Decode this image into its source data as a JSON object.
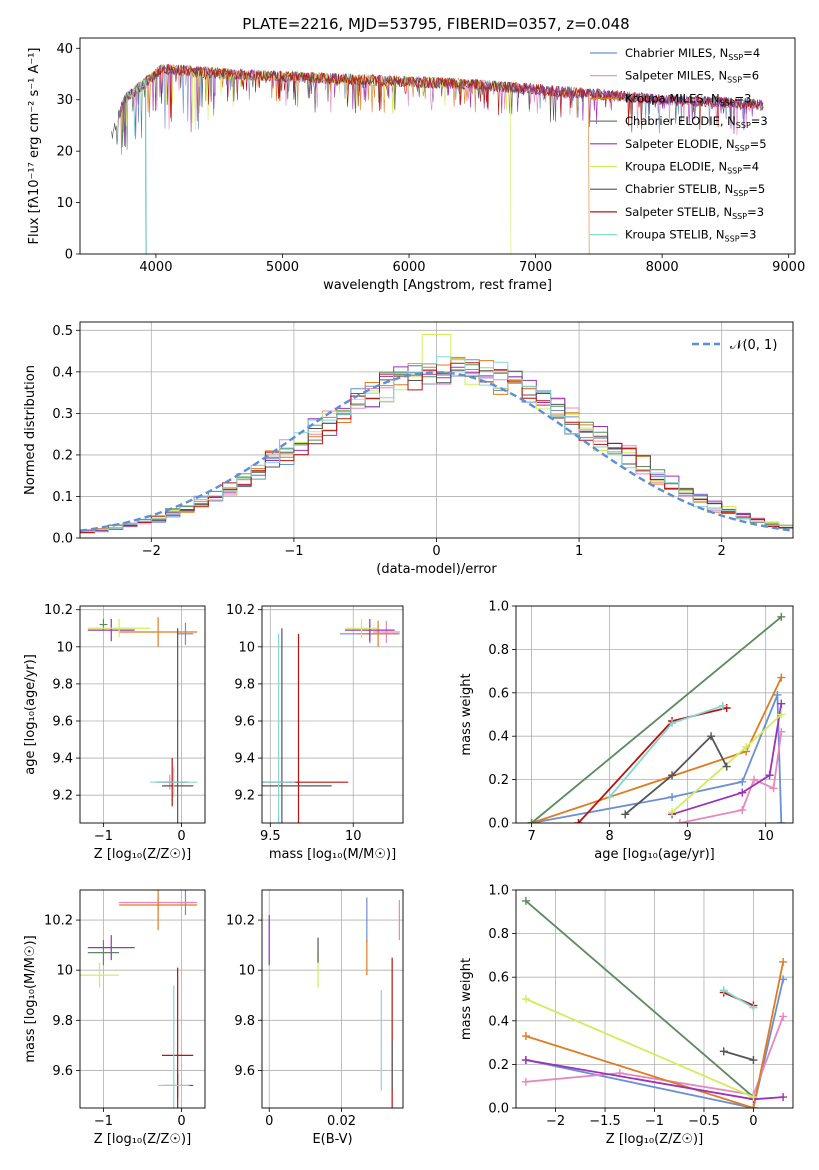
{
  "title": "PLATE=2216, MJD=53795, FIBERID=0357, z=0.048",
  "series": [
    {
      "key": "s1",
      "name": "Chabrier MILES",
      "nssp": "4",
      "color": "#6b8fd6"
    },
    {
      "key": "s2",
      "name": "Salpeter MILES",
      "nssp": "6",
      "color": "#e887be"
    },
    {
      "key": "s3",
      "name": "Kroupa MILES",
      "nssp": "3",
      "color": "#e07b22"
    },
    {
      "key": "s4",
      "name": "Chabrier ELODIE",
      "nssp": "3",
      "color": "#5c8a5c"
    },
    {
      "key": "s5",
      "name": "Salpeter ELODIE",
      "nssp": "5",
      "color": "#9b32b8"
    },
    {
      "key": "s6",
      "name": "Kroupa ELODIE",
      "nssp": "4",
      "color": "#d2ec5a"
    },
    {
      "key": "s7",
      "name": "Chabrier STELIB",
      "nssp": "5",
      "color": "#555555"
    },
    {
      "key": "s8",
      "name": "Salpeter STELIB",
      "nssp": "3",
      "color": "#b8140e"
    },
    {
      "key": "s9",
      "name": "Kroupa STELIB",
      "nssp": "3",
      "color": "#86d6d2"
    }
  ],
  "chart_data": [
    {
      "id": "spectrum",
      "type": "line",
      "xlabel": "wavelength [Angstrom, rest frame]",
      "ylabel": "Flux [fλ10⁻¹⁷ erg cm⁻² s⁻¹ A⁻¹]",
      "xlim": [
        3400,
        9050
      ],
      "ylim": [
        0,
        42
      ],
      "xticks": [
        4000,
        5000,
        6000,
        7000,
        8000,
        9000
      ],
      "yticks": [
        0,
        10,
        20,
        30,
        40
      ],
      "legend": "top-right",
      "continuum": {
        "x": [
          3650,
          3750,
          3850,
          3950,
          4050,
          4300,
          4600,
          5000,
          5500,
          6000,
          6500,
          7000,
          7500,
          8000,
          8500,
          8800
        ],
        "y": [
          23,
          30,
          32,
          34,
          36,
          35.5,
          35,
          34.5,
          34,
          33.5,
          33,
          32,
          31,
          30,
          29.5,
          29
        ]
      },
      "dropouts": [
        {
          "series": "s9",
          "x": 3920
        },
        {
          "series": "s4",
          "x": 3920
        },
        {
          "series": "s6",
          "x": 6800
        },
        {
          "series": "s3",
          "x": 7420
        }
      ]
    },
    {
      "id": "residuals",
      "type": "line",
      "xlabel": "(data-model)/error",
      "ylabel": "Normed distribution",
      "xlim": [
        -2.5,
        2.5
      ],
      "ylim": [
        0,
        0.52
      ],
      "xticks": [
        -2,
        -1,
        0,
        1,
        2
      ],
      "yticks": [
        0.0,
        0.1,
        0.2,
        0.3,
        0.4,
        0.5
      ],
      "legend": "top-right",
      "legend_label": "𝒩(0, 1)",
      "reference_curve": {
        "type": "normal",
        "mean": 0,
        "sigma": 1,
        "color": "#5b8fd6"
      },
      "bin_width": 0.1
    },
    {
      "id": "age_vs_Z",
      "type": "scatter",
      "xlabel": "Z [log₁₀(Z/Z☉)]",
      "ylabel": "age  [log₁₀(age/yr)]",
      "xlim": [
        -1.3,
        0.3
      ],
      "ylim": [
        9.05,
        10.22
      ],
      "xticks": [
        -1,
        0
      ],
      "yticks": [
        9.2,
        9.4,
        9.6,
        9.8,
        10.0,
        10.2
      ],
      "points": [
        {
          "series": "s1",
          "x": 0.05,
          "y": 10.07,
          "xerr": 0.1,
          "yerr": 0.06
        },
        {
          "series": "s2",
          "x": -0.15,
          "y": 9.27,
          "xerr": 0.05,
          "yerr": 0.04
        },
        {
          "series": "s3",
          "x": -0.3,
          "y": 10.08,
          "xerr": 0.5,
          "yerr": 0.08
        },
        {
          "series": "s4",
          "x": -1.0,
          "y": 10.12,
          "xerr": 0.05,
          "yerr": 0.03
        },
        {
          "series": "s5",
          "x": -0.9,
          "y": 10.09,
          "xerr": 0.3,
          "yerr": 0.06
        },
        {
          "series": "s6",
          "x": -0.8,
          "y": 10.1,
          "xerr": 0.4,
          "yerr": 0.05
        },
        {
          "series": "s7",
          "x": -0.05,
          "y": 9.25,
          "xerr": 0.2,
          "yerr": 0.85
        },
        {
          "series": "s8",
          "x": -0.12,
          "y": 9.27,
          "xerr": 0.2,
          "yerr": 0.13
        },
        {
          "series": "s9",
          "x": -0.1,
          "y": 9.27,
          "xerr": 0.3,
          "yerr": 0.08
        }
      ]
    },
    {
      "id": "age_vs_mass",
      "type": "scatter",
      "xlabel": "mass [log₁₀(M/M☉)]",
      "ylabel": "",
      "xlim": [
        9.45,
        10.3
      ],
      "ylim": [
        9.05,
        10.22
      ],
      "xticks": [
        9.5,
        10.0
      ],
      "yticks": [
        9.2,
        9.4,
        9.6,
        9.8,
        10.0,
        10.2
      ],
      "points": [
        {
          "series": "s1",
          "x": 10.1,
          "y": 10.07,
          "xerr": 0.18,
          "yerr": 0.05
        },
        {
          "series": "s2",
          "x": 10.2,
          "y": 10.08,
          "xerr": 0.08,
          "yerr": 0.06
        },
        {
          "series": "s3",
          "x": 10.15,
          "y": 10.07,
          "xerr": 0.12,
          "yerr": 0.07
        },
        {
          "series": "s5",
          "x": 10.1,
          "y": 10.09,
          "xerr": 0.15,
          "yerr": 0.06
        },
        {
          "series": "s6",
          "x": 10.05,
          "y": 10.1,
          "xerr": 0.1,
          "yerr": 0.05
        },
        {
          "series": "s7",
          "x": 9.57,
          "y": 9.25,
          "xerr": 0.3,
          "yerr": 0.85
        },
        {
          "series": "s8",
          "x": 9.67,
          "y": 9.27,
          "xerr": 0.3,
          "yerr": 0.8
        },
        {
          "series": "s9",
          "x": 9.55,
          "y": 9.27,
          "xerr": 0.1,
          "yerr": 0.8
        }
      ]
    },
    {
      "id": "weight_vs_age",
      "type": "line",
      "xlabel": "age  [log₁₀(age/yr)]",
      "ylabel": "mass weight",
      "xlim": [
        6.8,
        10.35
      ],
      "ylim": [
        0,
        1.0
      ],
      "xticks": [
        7,
        8,
        9,
        10
      ],
      "yticks": [
        0.0,
        0.2,
        0.4,
        0.6,
        0.8,
        1.0
      ],
      "lines": [
        {
          "series": "s1",
          "x": [
            7.0,
            8.8,
            9.7,
            10.15,
            10.2
          ],
          "y": [
            0.0,
            0.12,
            0.19,
            0.59,
            0.0
          ]
        },
        {
          "series": "s2",
          "x": [
            8.9,
            9.7,
            9.85,
            10.1,
            10.2
          ],
          "y": [
            0.0,
            0.06,
            0.2,
            0.16,
            0.42
          ]
        },
        {
          "series": "s3",
          "x": [
            7.0,
            9.75,
            10.2
          ],
          "y": [
            0.0,
            0.33,
            0.67
          ]
        },
        {
          "series": "s4",
          "x": [
            7.0,
            10.2
          ],
          "y": [
            0.0,
            0.95
          ]
        },
        {
          "series": "s5",
          "x": [
            8.8,
            9.7,
            10.05,
            10.2
          ],
          "y": [
            0.04,
            0.14,
            0.22,
            0.55
          ]
        },
        {
          "series": "s6",
          "x": [
            8.8,
            9.75,
            10.2
          ],
          "y": [
            0.05,
            0.35,
            0.5
          ]
        },
        {
          "series": "s7",
          "x": [
            8.2,
            8.8,
            9.3,
            9.5
          ],
          "y": [
            0.04,
            0.22,
            0.4,
            0.26
          ]
        },
        {
          "series": "s8",
          "x": [
            7.6,
            8.8,
            9.5
          ],
          "y": [
            0.0,
            0.47,
            0.53
          ]
        },
        {
          "series": "s9",
          "x": [
            8.0,
            8.8,
            9.45
          ],
          "y": [
            0.12,
            0.46,
            0.54
          ]
        }
      ]
    },
    {
      "id": "mass_vs_Z",
      "type": "scatter",
      "xlabel": "Z [log₁₀(Z/Z☉)]",
      "ylabel": "mass [log₁₀(M/M☉)]",
      "xlim": [
        -1.3,
        0.3
      ],
      "ylim": [
        9.45,
        10.32
      ],
      "xticks": [
        -1,
        0
      ],
      "yticks": [
        9.6,
        9.8,
        10.0,
        10.2
      ],
      "points": [
        {
          "series": "s1",
          "x": 0.05,
          "y": 10.27,
          "xerr": 0.1,
          "yerr": 0.05
        },
        {
          "series": "s2",
          "x": -0.3,
          "y": 10.27,
          "xerr": 0.5,
          "yerr": 0.03
        },
        {
          "series": "s3",
          "x": -0.3,
          "y": 10.26,
          "xerr": 0.5,
          "yerr": 0.1
        },
        {
          "series": "s4",
          "x": -1.0,
          "y": 10.07,
          "xerr": 0.2,
          "yerr": 0.05
        },
        {
          "series": "s5",
          "x": -0.9,
          "y": 10.09,
          "xerr": 0.3,
          "yerr": 0.05
        },
        {
          "series": "s6",
          "x": -1.05,
          "y": 9.98,
          "xerr": 0.25,
          "yerr": 0.05
        },
        {
          "series": "s7",
          "x": -0.05,
          "y": 9.54,
          "xerr": 0.2,
          "yerr": 0.05
        },
        {
          "series": "s8",
          "x": -0.05,
          "y": 9.66,
          "xerr": 0.2,
          "yerr": 0.35
        },
        {
          "series": "s9",
          "x": -0.1,
          "y": 9.54,
          "xerr": 0.2,
          "yerr": 0.4
        }
      ]
    },
    {
      "id": "mass_vs_ebv",
      "type": "scatter",
      "xlabel": "E(B-V)",
      "ylabel": "",
      "xlim": [
        -0.002,
        0.037
      ],
      "ylim": [
        9.45,
        10.32
      ],
      "xticks": [
        0.0,
        0.02
      ],
      "yticks": [
        9.6,
        9.8,
        10.0,
        10.2
      ],
      "points": [
        {
          "series": "s5",
          "x": 0.0,
          "y": 10.12,
          "xerr": 0.0,
          "yerr": 0.1
        },
        {
          "series": "s6",
          "x": 0.0135,
          "y": 10.0,
          "xerr": 0.0,
          "yerr": 0.07
        },
        {
          "series": "s7",
          "x": 0.0135,
          "y": 10.08,
          "xerr": 0.0,
          "yerr": 0.05
        },
        {
          "series": "s1",
          "x": 0.027,
          "y": 10.2,
          "xerr": 0.0,
          "yerr": 0.09
        },
        {
          "series": "s3",
          "x": 0.027,
          "y": 10.05,
          "xerr": 0.0,
          "yerr": 0.07
        },
        {
          "series": "s9",
          "x": 0.031,
          "y": 9.72,
          "xerr": 0.0,
          "yerr": 0.2
        },
        {
          "series": "s8",
          "x": 0.034,
          "y": 9.75,
          "xerr": 0.0,
          "yerr": 0.3
        },
        {
          "series": "s7",
          "x": 0.034,
          "y": 9.62,
          "xerr": 0.0,
          "yerr": 0.1
        },
        {
          "series": "s2",
          "x": 0.036,
          "y": 10.2,
          "xerr": 0.0,
          "yerr": 0.08
        }
      ]
    },
    {
      "id": "weight_vs_Z",
      "type": "line",
      "xlabel": "Z [log₁₀(Z/Z☉)]",
      "ylabel": "mass weight",
      "xlim": [
        -2.4,
        0.4
      ],
      "ylim": [
        0,
        1.0
      ],
      "xticks": [
        -2.0,
        -1.5,
        -1.0,
        -0.5,
        0.0
      ],
      "yticks": [
        0.0,
        0.2,
        0.4,
        0.6,
        0.8,
        1.0
      ],
      "lines": [
        {
          "series": "s1",
          "x": [
            -2.3,
            0.0,
            0.3
          ],
          "y": [
            0.22,
            0.0,
            0.59
          ]
        },
        {
          "series": "s2",
          "x": [
            -2.3,
            -1.35,
            0.0,
            0.3
          ],
          "y": [
            0.12,
            0.16,
            0.06,
            0.42
          ]
        },
        {
          "series": "s3",
          "x": [
            -2.3,
            0.0,
            0.3
          ],
          "y": [
            0.33,
            0.0,
            0.67
          ]
        },
        {
          "series": "s4",
          "x": [
            -2.3,
            0.0
          ],
          "y": [
            0.95,
            0.05
          ]
        },
        {
          "series": "s5",
          "x": [
            -2.3,
            0.0,
            0.3
          ],
          "y": [
            0.22,
            0.04,
            0.05
          ]
        },
        {
          "series": "s6",
          "x": [
            -2.3,
            0.0
          ],
          "y": [
            0.5,
            0.05
          ]
        },
        {
          "series": "s7",
          "x": [
            -0.3,
            0.0
          ],
          "y": [
            0.26,
            0.22
          ]
        },
        {
          "series": "s8",
          "x": [
            -0.3,
            0.0
          ],
          "y": [
            0.53,
            0.47
          ]
        },
        {
          "series": "s9",
          "x": [
            -0.3,
            0.0
          ],
          "y": [
            0.54,
            0.46
          ]
        }
      ]
    }
  ]
}
